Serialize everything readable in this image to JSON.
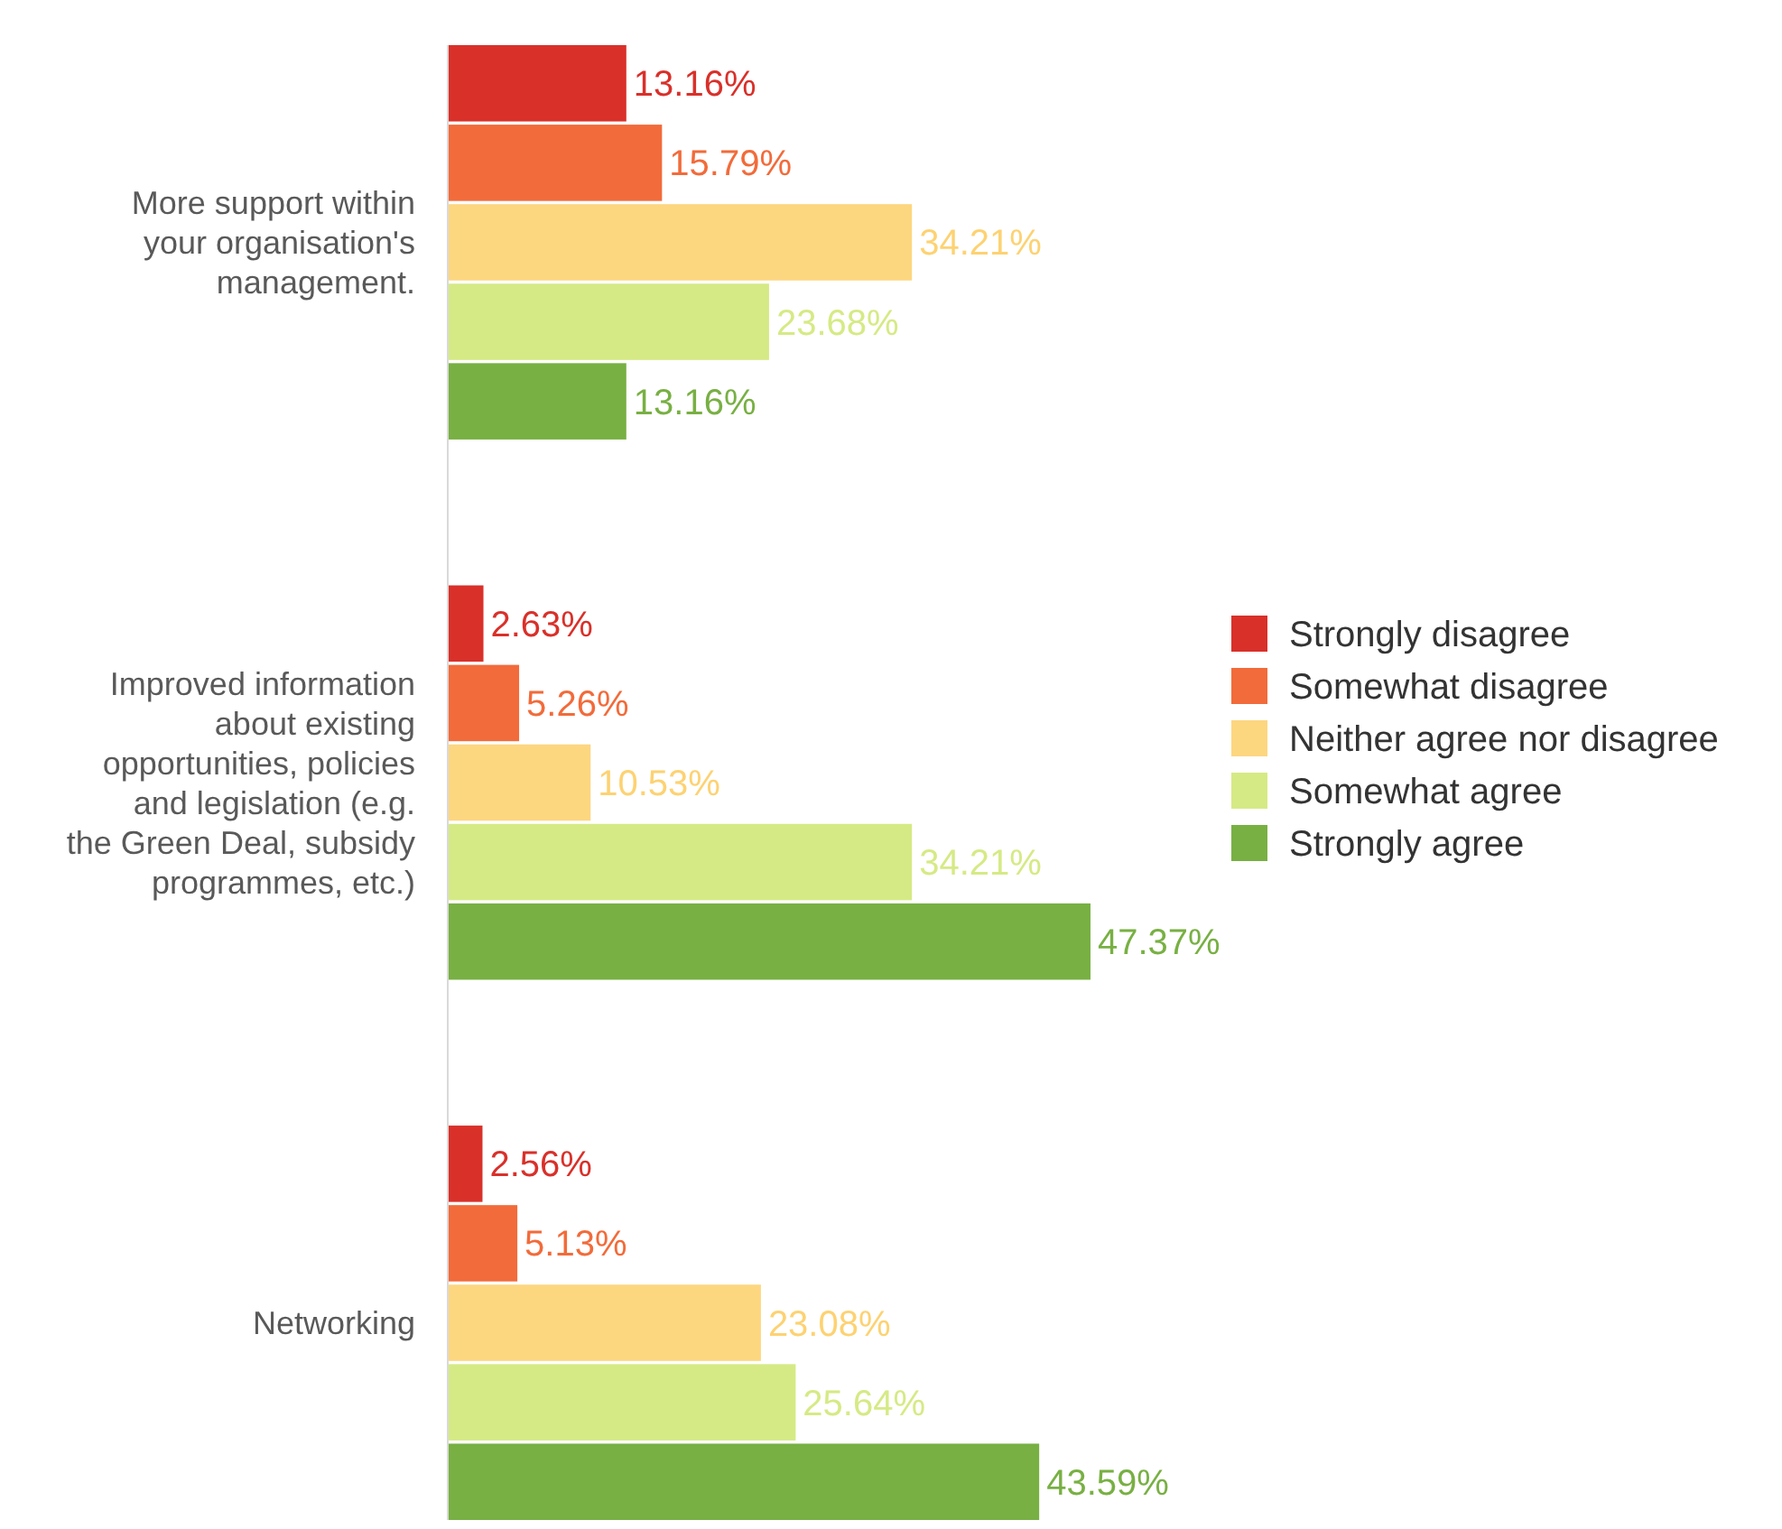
{
  "chart_data": {
    "type": "bar",
    "orientation": "horizontal",
    "categories": [
      "More support within your organisation's management.",
      "Improved information about existing opportunities, policies and legislation (e.g. the Green Deal, subsidy programmes, etc.)",
      "Networking"
    ],
    "series": [
      {
        "name": "Strongly disagree",
        "color": "#d9302a",
        "values": [
          13.16,
          2.63,
          2.56
        ],
        "value_labels": [
          "13.16%",
          "2.63%",
          "2.56%"
        ]
      },
      {
        "name": "Somewhat disagree",
        "color": "#f26b3a",
        "values": [
          15.79,
          5.26,
          5.13
        ],
        "value_labels": [
          "15.79%",
          "5.26%",
          "5.13%"
        ]
      },
      {
        "name": "Neither agree nor disagree",
        "color": "#fdd680",
        "values": [
          34.21,
          10.53,
          23.08
        ],
        "value_labels": [
          "34.21%",
          "10.53%",
          "23.08%"
        ]
      },
      {
        "name": "Somewhat agree",
        "color": "#d5ea85",
        "values": [
          23.68,
          34.21,
          25.64
        ],
        "value_labels": [
          "23.68%",
          "34.21%",
          "25.64%"
        ]
      },
      {
        "name": "Strongly agree",
        "color": "#78b043",
        "values": [
          13.16,
          47.37,
          43.59
        ],
        "value_labels": [
          "13.16%",
          "47.37%",
          "43.59%"
        ]
      }
    ],
    "legend": "right"
  }
}
